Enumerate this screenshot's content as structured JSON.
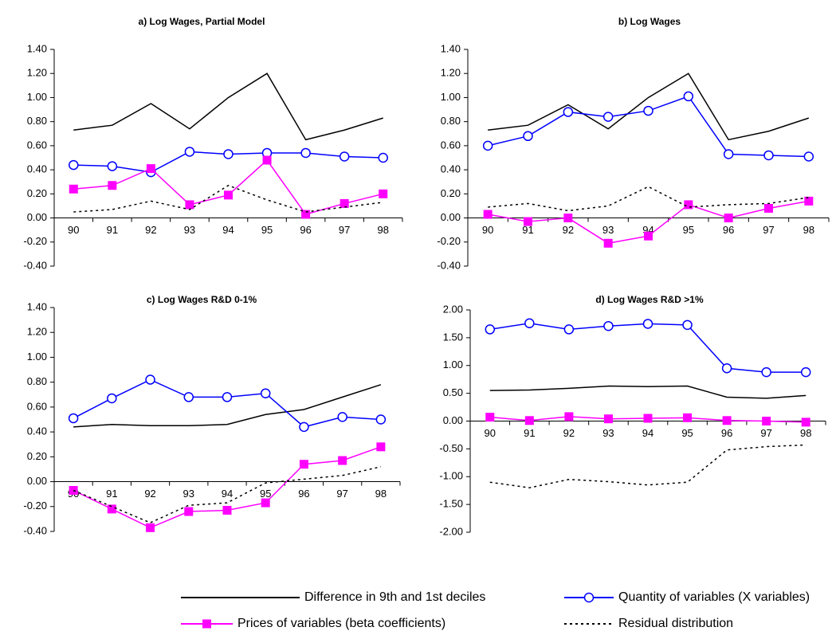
{
  "chart_data": [
    {
      "type": "line",
      "title": "a) Log Wages, Partial Model",
      "categories": [
        "90",
        "91",
        "92",
        "93",
        "94",
        "95",
        "96",
        "97",
        "98"
      ],
      "ylim": [
        -0.4,
        1.4
      ],
      "yticks": [
        {
          "value": -0.4,
          "label": "-0.40"
        },
        {
          "value": -0.2,
          "label": "-0.20"
        },
        {
          "value": 0,
          "label": "0.00"
        },
        {
          "value": 0.2,
          "label": "0.20"
        },
        {
          "value": 0.4,
          "label": "0.40"
        },
        {
          "value": 0.6,
          "label": "0.60"
        },
        {
          "value": 0.8,
          "label": "0.80"
        },
        {
          "value": 1.0,
          "label": "1.00"
        },
        {
          "value": 1.2,
          "label": "1.20"
        },
        {
          "value": 1.4,
          "label": "1.40"
        }
      ],
      "series": [
        {
          "name": "Difference in 9th and 1st deciles",
          "color": "#000000",
          "marker": "none",
          "dash": false,
          "values": [
            0.73,
            0.77,
            0.95,
            0.74,
            1.0,
            1.2,
            0.65,
            0.73,
            0.83
          ]
        },
        {
          "name": "Quantity of variables (X variables)",
          "color": "#0000ff",
          "marker": "circle",
          "dash": false,
          "values": [
            0.44,
            0.43,
            0.38,
            0.55,
            0.53,
            0.54,
            0.54,
            0.51,
            0.5
          ]
        },
        {
          "name": "Prices of variables (beta coefficients)",
          "color": "#ff00ff",
          "marker": "square",
          "dash": false,
          "values": [
            0.24,
            0.27,
            0.41,
            0.11,
            0.19,
            0.48,
            0.03,
            0.12,
            0.2
          ]
        },
        {
          "name": "Residual distribution",
          "color": "#000000",
          "marker": "none",
          "dash": true,
          "values": [
            0.05,
            0.07,
            0.14,
            0.07,
            0.27,
            0.15,
            0.05,
            0.09,
            0.13
          ]
        }
      ]
    },
    {
      "type": "line",
      "title": "b) Log Wages",
      "categories": [
        "90",
        "91",
        "92",
        "93",
        "94",
        "95",
        "96",
        "97",
        "98"
      ],
      "ylim": [
        -0.4,
        1.4
      ],
      "yticks": [
        {
          "value": -0.4,
          "label": "-0.40"
        },
        {
          "value": -0.2,
          "label": "-0.20"
        },
        {
          "value": 0,
          "label": "0.00"
        },
        {
          "value": 0.2,
          "label": "0.20"
        },
        {
          "value": 0.4,
          "label": "0.40"
        },
        {
          "value": 0.6,
          "label": "0.60"
        },
        {
          "value": 0.8,
          "label": "0.80"
        },
        {
          "value": 1.0,
          "label": "1.00"
        },
        {
          "value": 1.2,
          "label": "1.20"
        },
        {
          "value": 1.4,
          "label": "1.40"
        }
      ],
      "series": [
        {
          "name": "Difference in 9th and 1st deciles",
          "color": "#000000",
          "marker": "none",
          "dash": false,
          "values": [
            0.73,
            0.77,
            0.94,
            0.74,
            1.0,
            1.2,
            0.65,
            0.72,
            0.83
          ]
        },
        {
          "name": "Quantity of variables (X variables)",
          "color": "#0000ff",
          "marker": "circle",
          "dash": false,
          "values": [
            0.6,
            0.68,
            0.88,
            0.84,
            0.89,
            1.01,
            0.53,
            0.52,
            0.51
          ]
        },
        {
          "name": "Prices of variables (beta coefficients)",
          "color": "#ff00ff",
          "marker": "square",
          "dash": false,
          "values": [
            0.03,
            -0.03,
            0.0,
            -0.21,
            -0.15,
            0.11,
            0.0,
            0.08,
            0.14
          ]
        },
        {
          "name": "Residual distribution",
          "color": "#000000",
          "marker": "none",
          "dash": true,
          "values": [
            0.09,
            0.12,
            0.06,
            0.1,
            0.26,
            0.09,
            0.11,
            0.12,
            0.17
          ]
        }
      ]
    },
    {
      "type": "line",
      "title": "c) Log Wages R&D 0-1%",
      "categories": [
        "90",
        "91",
        "92",
        "93",
        "94",
        "95",
        "96",
        "97",
        "98"
      ],
      "ylim": [
        -0.4,
        1.4
      ],
      "yticks": [
        {
          "value": -0.4,
          "label": "-0.40"
        },
        {
          "value": -0.2,
          "label": "-0.20"
        },
        {
          "value": 0,
          "label": "0.00"
        },
        {
          "value": 0.2,
          "label": "0.20"
        },
        {
          "value": 0.4,
          "label": "0.40"
        },
        {
          "value": 0.6,
          "label": "0.60"
        },
        {
          "value": 0.8,
          "label": "0.80"
        },
        {
          "value": 1.0,
          "label": "1.00"
        },
        {
          "value": 1.2,
          "label": "1.20"
        },
        {
          "value": 1.4,
          "label": "1.40"
        }
      ],
      "series": [
        {
          "name": "Difference in 9th and 1st deciles",
          "color": "#000000",
          "marker": "none",
          "dash": false,
          "values": [
            0.44,
            0.46,
            0.45,
            0.45,
            0.46,
            0.54,
            0.58,
            0.68,
            0.78
          ]
        },
        {
          "name": "Quantity of variables (X variables)",
          "color": "#0000ff",
          "marker": "circle",
          "dash": false,
          "values": [
            0.51,
            0.67,
            0.82,
            0.68,
            0.68,
            0.71,
            0.44,
            0.52,
            0.5
          ]
        },
        {
          "name": "Prices of variables (beta coefficients)",
          "color": "#ff00ff",
          "marker": "square",
          "dash": false,
          "values": [
            -0.07,
            -0.22,
            -0.37,
            -0.24,
            -0.23,
            -0.17,
            0.14,
            0.17,
            0.28
          ]
        },
        {
          "name": "Residual distribution",
          "color": "#000000",
          "marker": "none",
          "dash": true,
          "values": [
            -0.07,
            -0.2,
            -0.33,
            -0.19,
            -0.17,
            -0.01,
            0.02,
            0.05,
            0.12
          ]
        }
      ]
    },
    {
      "type": "line",
      "title": "d) Log Wages R&D >1%",
      "categories": [
        "90",
        "91",
        "92",
        "93",
        "94",
        "95",
        "96",
        "97",
        "98"
      ],
      "ylim": [
        -2.0,
        2.0
      ],
      "yticks": [
        {
          "value": -2.0,
          "label": "-2.00"
        },
        {
          "value": -1.5,
          "label": "-1.50"
        },
        {
          "value": -1.0,
          "label": "-1.00"
        },
        {
          "value": -0.5,
          "label": "-0.50"
        },
        {
          "value": 0,
          "label": "0.00"
        },
        {
          "value": 0.5,
          "label": "0.50"
        },
        {
          "value": 1.0,
          "label": "1.00"
        },
        {
          "value": 1.5,
          "label": "1.50"
        },
        {
          "value": 2.0,
          "label": "2.00"
        }
      ],
      "series": [
        {
          "name": "Difference in 9th and 1st deciles",
          "color": "#000000",
          "marker": "none",
          "dash": false,
          "values": [
            0.55,
            0.56,
            0.59,
            0.63,
            0.62,
            0.63,
            0.43,
            0.41,
            0.46
          ]
        },
        {
          "name": "Quantity of variables (X variables)",
          "color": "#0000ff",
          "marker": "circle",
          "dash": false,
          "values": [
            1.65,
            1.76,
            1.65,
            1.71,
            1.75,
            1.73,
            0.95,
            0.88,
            0.88
          ]
        },
        {
          "name": "Prices of variables (beta coefficients)",
          "color": "#ff00ff",
          "marker": "square",
          "dash": false,
          "values": [
            0.07,
            0.01,
            0.08,
            0.04,
            0.05,
            0.06,
            0.01,
            0.0,
            -0.02
          ]
        },
        {
          "name": "Residual distribution",
          "color": "#000000",
          "marker": "none",
          "dash": true,
          "values": [
            -1.1,
            -1.2,
            -1.05,
            -1.09,
            -1.15,
            -1.1,
            -0.52,
            -0.46,
            -0.43
          ]
        }
      ]
    }
  ]
}
